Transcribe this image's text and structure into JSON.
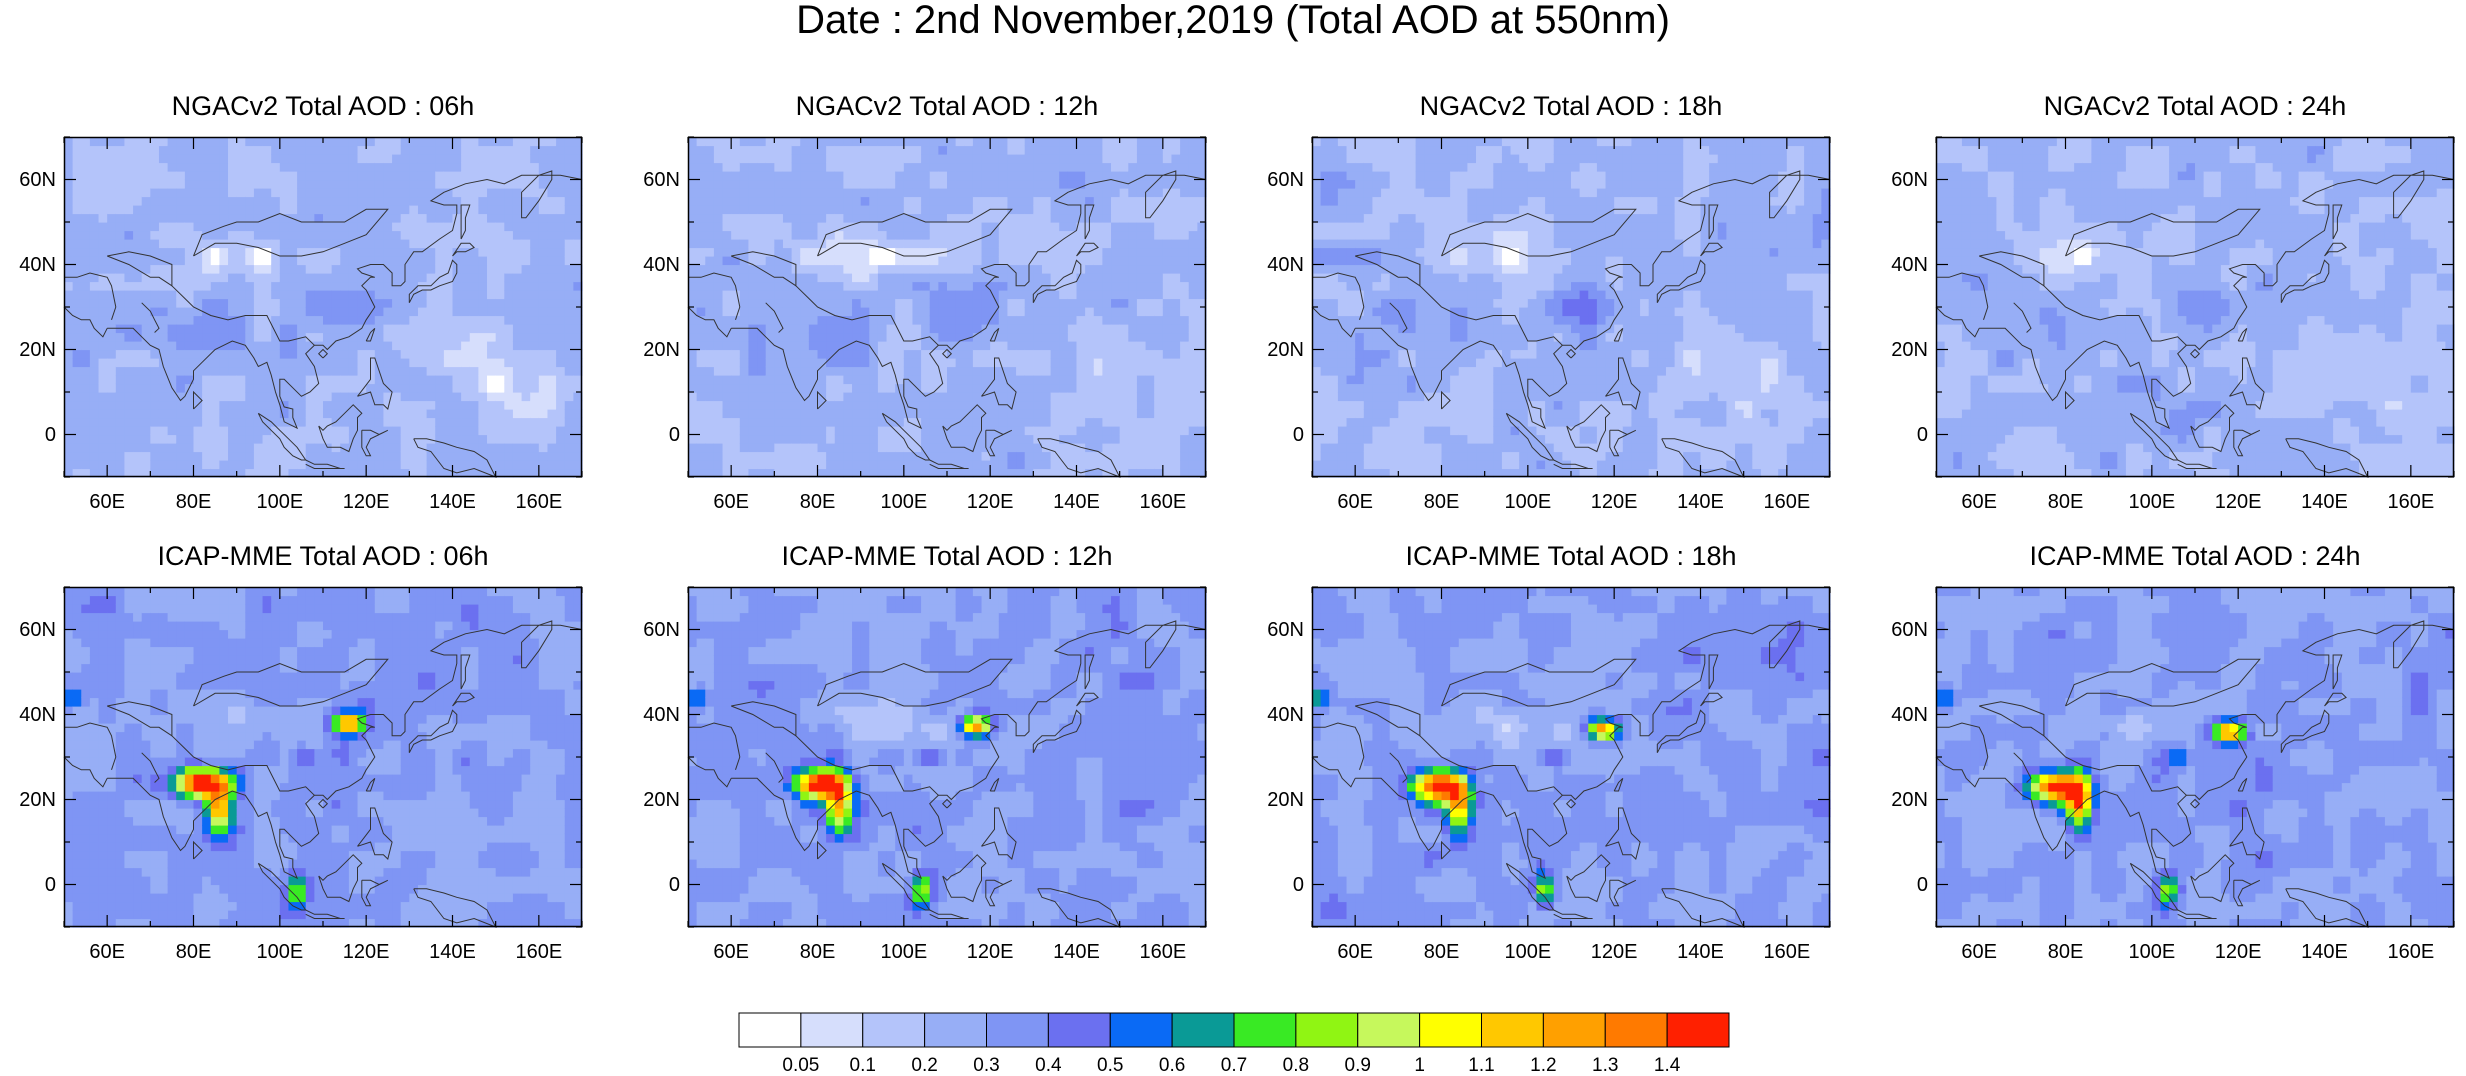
{
  "title": "Date : 2nd November,2019 (Total AOD at 550nm)",
  "panels": [
    {
      "title": "NGACv2 Total AOD : 06h",
      "model": "ngac",
      "hour": 6
    },
    {
      "title": "NGACv2 Total AOD : 12h",
      "model": "ngac",
      "hour": 12
    },
    {
      "title": "NGACv2 Total AOD : 18h",
      "model": "ngac",
      "hour": 18
    },
    {
      "title": "NGACv2 Total AOD : 24h",
      "model": "ngac",
      "hour": 24
    },
    {
      "title": "ICAP-MME Total AOD : 06h",
      "model": "icap",
      "hour": 6
    },
    {
      "title": "ICAP-MME Total AOD : 12h",
      "model": "icap",
      "hour": 12
    },
    {
      "title": "ICAP-MME Total AOD : 18h",
      "model": "icap",
      "hour": 18
    },
    {
      "title": "ICAP-MME Total AOD : 24h",
      "model": "icap",
      "hour": 24
    }
  ],
  "map": {
    "lon_range": [
      50,
      170
    ],
    "lat_range": [
      -10,
      70
    ],
    "lat_ticks": [
      "60N",
      "40N",
      "20N",
      "0"
    ],
    "lon_ticks": [
      "60E",
      "80E",
      "100E",
      "120E",
      "140E",
      "160E"
    ]
  },
  "colorbar": {
    "labels": [
      "0.05",
      "0.1",
      "0.2",
      "0.3",
      "0.4",
      "0.5",
      "0.6",
      "0.7",
      "0.8",
      "0.9",
      "1",
      "1.1",
      "1.2",
      "1.3",
      "1.4"
    ],
    "colors": [
      "#ffffff",
      "#d6defc",
      "#b4c4fa",
      "#97aef6",
      "#7f95f4",
      "#6b70f0",
      "#0a6af5",
      "#0a9a96",
      "#39ea24",
      "#90f513",
      "#c6f85c",
      "#ffff00",
      "#ffc800",
      "#ffa000",
      "#ff7a00",
      "#ff2000"
    ]
  }
}
